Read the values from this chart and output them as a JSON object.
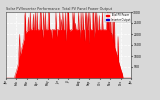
{
  "title": "Solar PV/Inverter Performance  Total PV Panel Power Output",
  "bg_color": "#d8d8d8",
  "plot_bg": "#f0f0f0",
  "grid_color": "#ffffff",
  "area_color": "#ff0000",
  "area_edge": "#dd0000",
  "ylim": [
    0,
    3000
  ],
  "yticks": [
    500,
    1000,
    1500,
    2000,
    2500,
    3000
  ],
  "ytick_labels": [
    "500",
    "1000",
    "1500",
    "2000",
    "2500",
    "3000"
  ],
  "num_points": 200,
  "legend_label1": "Total PV Power",
  "legend_label2": "Inverter Output",
  "seed": 12345
}
